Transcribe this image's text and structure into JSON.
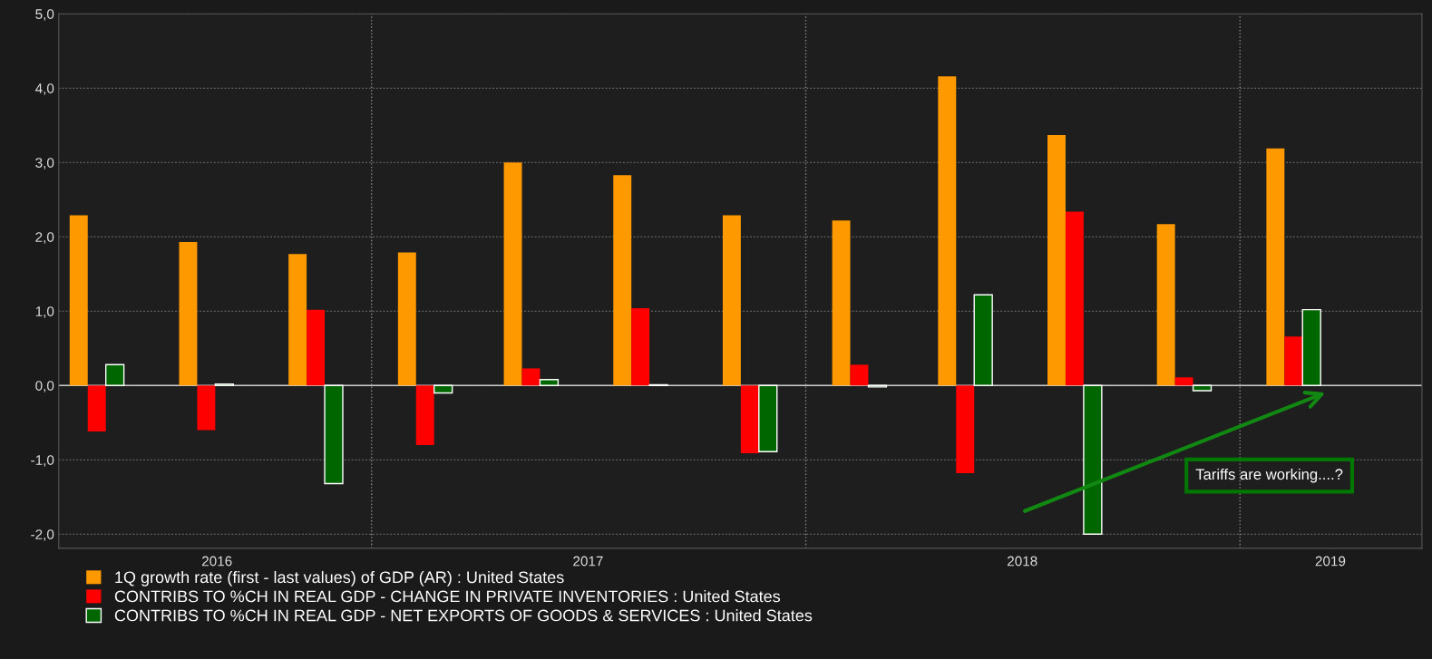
{
  "chart_data": {
    "type": "bar",
    "x": [
      "2016-05-15",
      "2016-08-15",
      "2016-11-15",
      "2017-02-15",
      "2017-05-15",
      "2017-08-15",
      "2017-11-15",
      "2018-02-15",
      "2018-05-15",
      "2018-08-15",
      "2018-11-15",
      "2019-02-15"
    ],
    "series": [
      {
        "name": "1Q growth rate (first - last values) of GDP (AR) : United States",
        "color": "#ff9900",
        "values": [
          2.29,
          1.93,
          1.77,
          1.79,
          3.0,
          2.83,
          2.29,
          2.22,
          4.16,
          3.37,
          2.17,
          3.19
        ]
      },
      {
        "name": "CONTRIBS TO %CH IN REAL GDP - CHANGE IN PRIVATE INVENTORIES : United States",
        "color": "#ff0000",
        "values": [
          -0.62,
          -0.6,
          1.02,
          -0.8,
          0.23,
          1.04,
          -0.91,
          0.28,
          -1.18,
          2.34,
          0.11,
          0.66
        ]
      },
      {
        "name": "CONTRIBS TO %CH IN REAL GDP - NET EXPORTS OF GOODS & SERVICES : United States",
        "color": "#006600",
        "values": [
          0.28,
          0.02,
          -1.32,
          -0.1,
          0.08,
          0.01,
          -0.89,
          -0.02,
          1.22,
          -2.0,
          -0.07,
          1.02
        ]
      }
    ],
    "xlim": [
      "2016-04-13",
      "2019-06-03"
    ],
    "xticks": [
      {
        "value": "2016-08-24",
        "label": "2016"
      },
      {
        "value": "2017-07-02",
        "label": "2017"
      },
      {
        "value": "2018-07-02",
        "label": "2018"
      },
      {
        "value": "2019-03-18",
        "label": "2019"
      }
    ],
    "ylim": [
      -2.19,
      5.0
    ],
    "yticks": [
      {
        "value": -2,
        "label": "-2,0"
      },
      {
        "value": -1,
        "label": "-1,0"
      },
      {
        "value": 0,
        "label": "0,0"
      },
      {
        "value": 1,
        "label": "1,0"
      },
      {
        "value": 2,
        "label": "2,0"
      },
      {
        "value": 3,
        "label": "3,0"
      },
      {
        "value": 4,
        "label": "4,0"
      },
      {
        "value": 5,
        "label": "5,0"
      }
    ],
    "ref_lines": [
      {
        "axis": "x",
        "value": "2017-01-01",
        "color": "#888888",
        "line_style": "dotted"
      },
      {
        "axis": "x",
        "value": "2018-01-01",
        "color": "#888888",
        "line_style": "dotted"
      },
      {
        "axis": "x",
        "value": "2019-01-01",
        "color": "#888888",
        "line_style": "dotted"
      },
      {
        "axis": "y",
        "value": 0,
        "color": "#cccccc",
        "line_style": "solid"
      }
    ],
    "grid": "y",
    "legend": "bottom left",
    "annotations": [
      "Tariffs are working....?"
    ]
  }
}
